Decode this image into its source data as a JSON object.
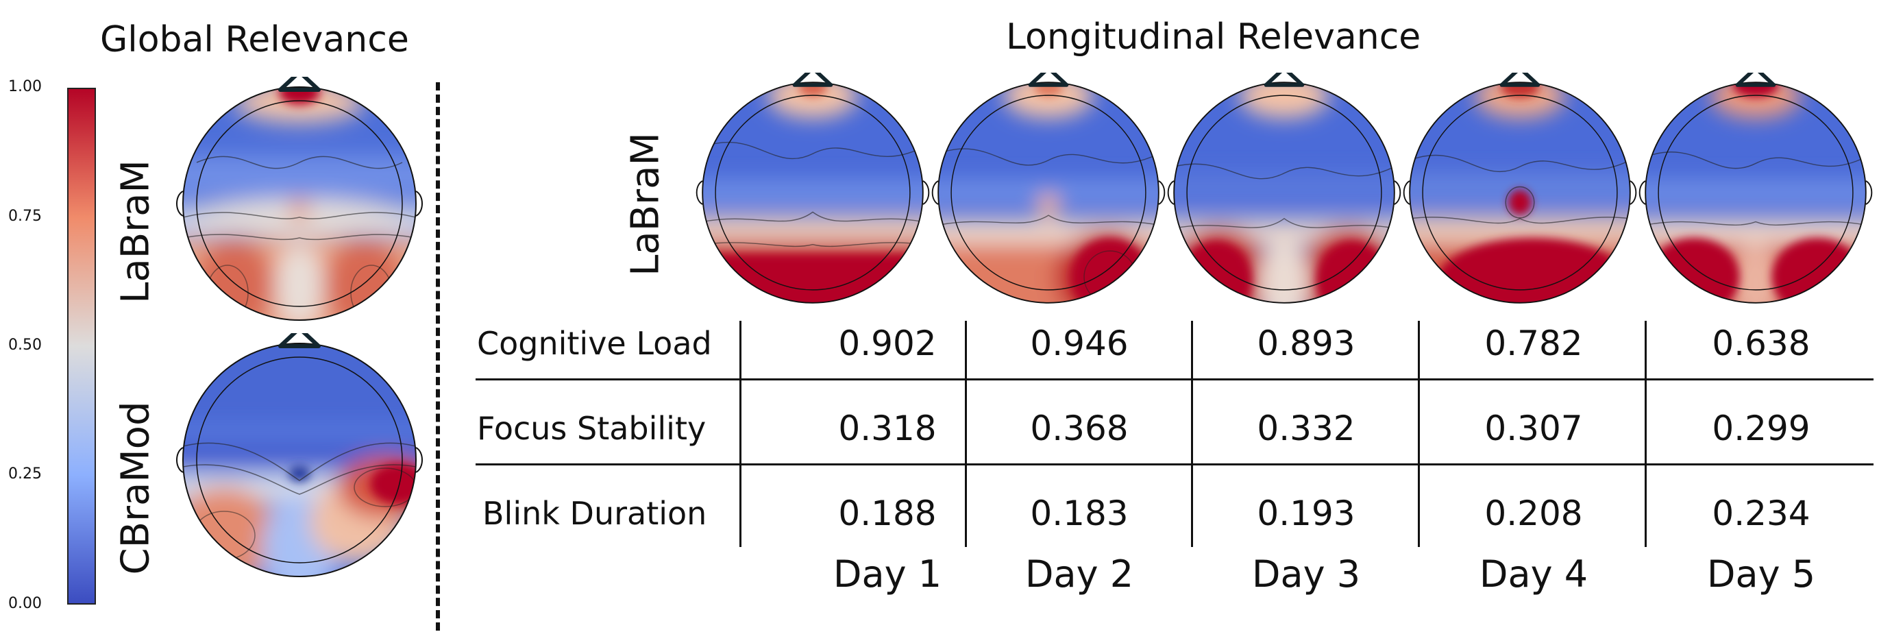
{
  "global_panel": {
    "title": "Global Relevance",
    "model_labels": [
      "LaBraM",
      "CBraMod"
    ]
  },
  "longitudinal_panel": {
    "title": "Longitudinal Relevance",
    "model_label": "LaBraM"
  },
  "colorbar": {
    "ticks": [
      "1.00",
      "0.75",
      "0.50",
      "0.25",
      "0.00"
    ],
    "colors": {
      "high": "#b40426",
      "mid": "#dddcdc",
      "low": "#3b4cc0"
    }
  },
  "table": {
    "row_labels": [
      "Cognitive Load",
      "Focus Stability",
      "Blink Duration"
    ],
    "days": [
      "Day 1",
      "Day 2",
      "Day 3",
      "Day 4",
      "Day 5"
    ],
    "values": [
      [
        "0.902",
        "0.946",
        "0.893",
        "0.782",
        "0.638"
      ],
      [
        "0.318",
        "0.368",
        "0.332",
        "0.307",
        "0.299"
      ],
      [
        "0.188",
        "0.183",
        "0.193",
        "0.208",
        "0.234"
      ]
    ]
  }
}
